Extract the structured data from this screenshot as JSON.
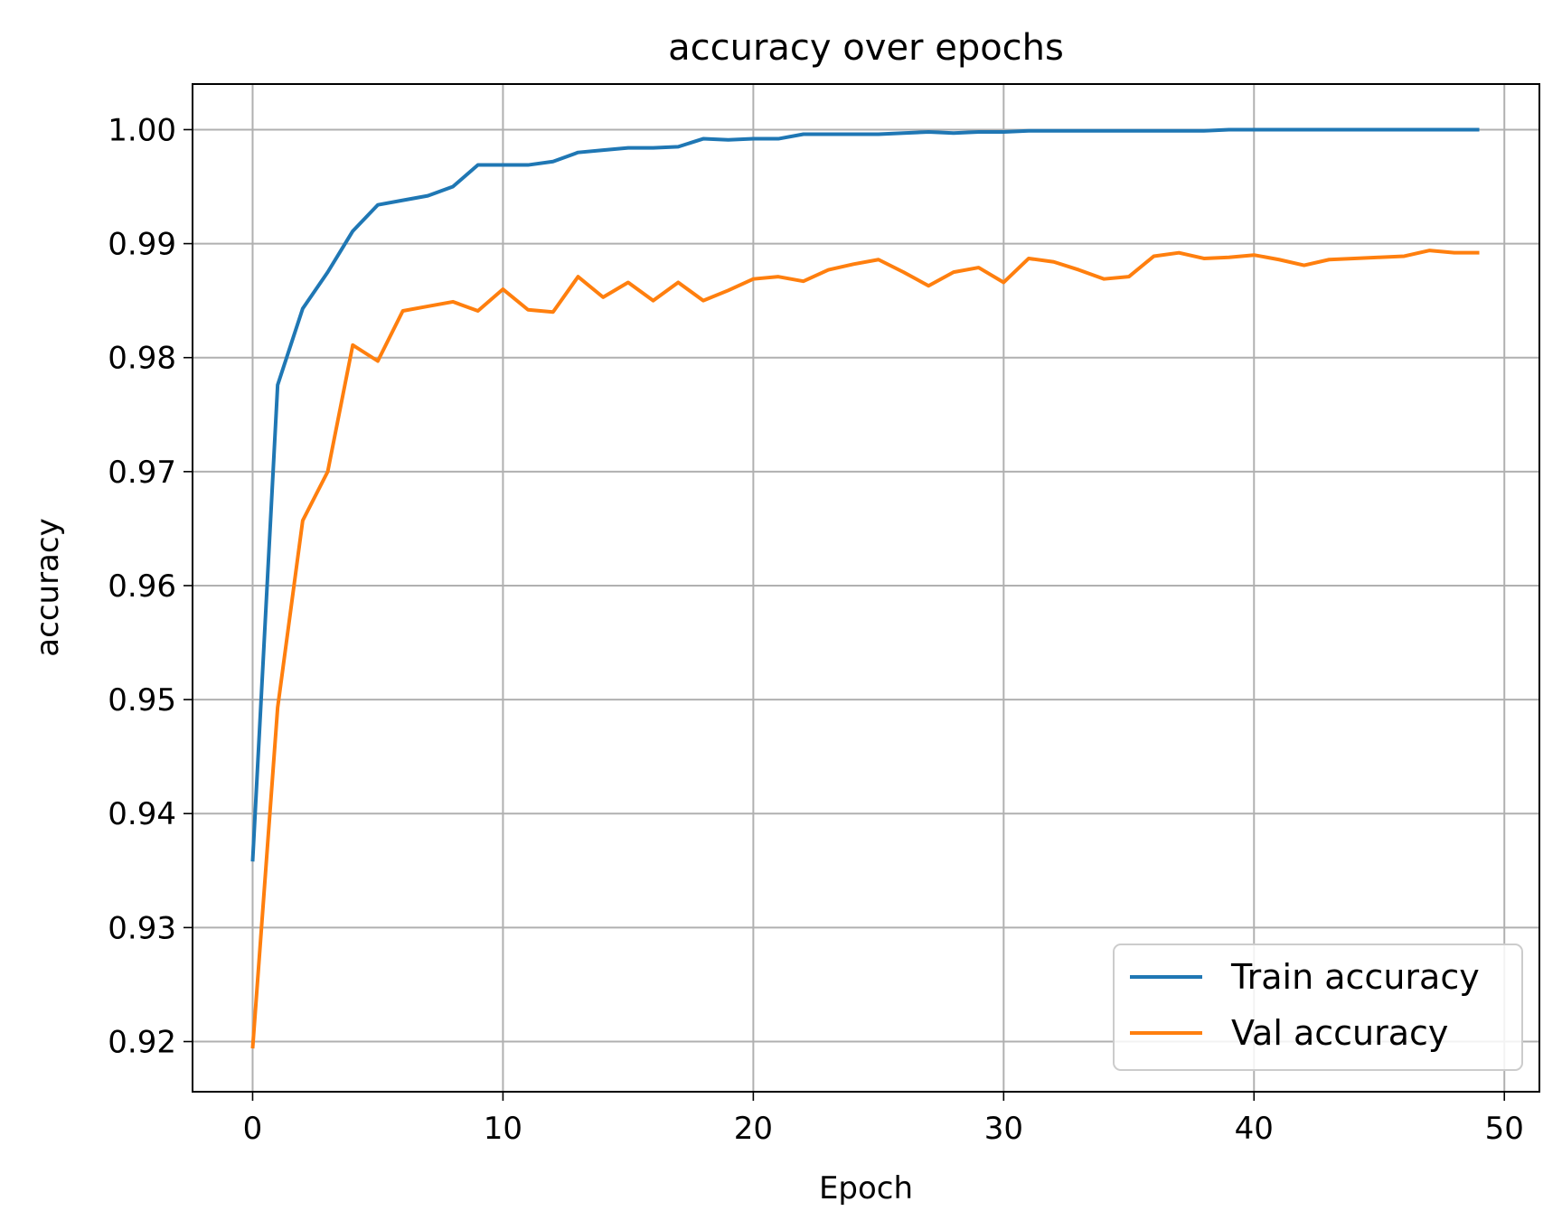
{
  "chart_data": {
    "type": "line",
    "title": "accuracy over epochs",
    "xlabel": "Epoch",
    "ylabel": "accuracy",
    "xlim": [
      -2.4,
      51.4
    ],
    "ylim": [
      0.9156,
      1.004
    ],
    "xticks": [
      0,
      10,
      20,
      30,
      40,
      50
    ],
    "yticks": [
      0.92,
      0.93,
      0.94,
      0.95,
      0.96,
      0.97,
      0.98,
      0.99,
      1.0
    ],
    "ytick_labels": [
      "0.92",
      "0.93",
      "0.94",
      "0.95",
      "0.96",
      "0.97",
      "0.98",
      "0.99",
      "1.00"
    ],
    "xtick_labels": [
      "0",
      "10",
      "20",
      "30",
      "40",
      "50"
    ],
    "grid": true,
    "legend_position": "lower-right",
    "x": [
      0,
      1,
      2,
      3,
      4,
      5,
      6,
      7,
      8,
      9,
      10,
      11,
      12,
      13,
      14,
      15,
      16,
      17,
      18,
      19,
      20,
      21,
      22,
      23,
      24,
      25,
      26,
      27,
      28,
      29,
      30,
      31,
      32,
      33,
      34,
      35,
      36,
      37,
      38,
      39,
      40,
      41,
      42,
      43,
      44,
      45,
      46,
      47,
      48,
      49
    ],
    "series": [
      {
        "name": "Train accuracy",
        "color": "#1f77b4",
        "values": [
          0.9358,
          0.9776,
          0.9843,
          0.9875,
          0.9911,
          0.9934,
          0.9938,
          0.9942,
          0.995,
          0.9969,
          0.9969,
          0.9969,
          0.9972,
          0.998,
          0.9982,
          0.9984,
          0.9984,
          0.9985,
          0.9992,
          0.9991,
          0.9992,
          0.9992,
          0.9996,
          0.9996,
          0.9996,
          0.9996,
          0.9997,
          0.9998,
          0.9997,
          0.9998,
          0.9998,
          0.9999,
          0.9999,
          0.9999,
          0.9999,
          0.9999,
          0.9999,
          0.9999,
          0.9999,
          1.0,
          1.0,
          1.0,
          1.0,
          1.0,
          1.0,
          1.0,
          1.0,
          1.0,
          1.0,
          1.0
        ]
      },
      {
        "name": "Val accuracy",
        "color": "#ff7f0e",
        "values": [
          0.9194,
          0.9493,
          0.9657,
          0.97,
          0.9811,
          0.9797,
          0.9841,
          0.9845,
          0.9849,
          0.9841,
          0.986,
          0.9842,
          0.984,
          0.9871,
          0.9853,
          0.9866,
          0.985,
          0.9866,
          0.985,
          0.9859,
          0.9869,
          0.9871,
          0.9867,
          0.9877,
          0.9882,
          0.9886,
          0.9875,
          0.9863,
          0.9875,
          0.9879,
          0.9866,
          0.9887,
          0.9884,
          0.9877,
          0.9869,
          0.9871,
          0.9889,
          0.9892,
          0.9887,
          0.9888,
          0.989,
          0.9886,
          0.9881,
          0.9886,
          0.9887,
          0.9888,
          0.9889,
          0.9894,
          0.9892,
          0.9892
        ]
      }
    ]
  }
}
